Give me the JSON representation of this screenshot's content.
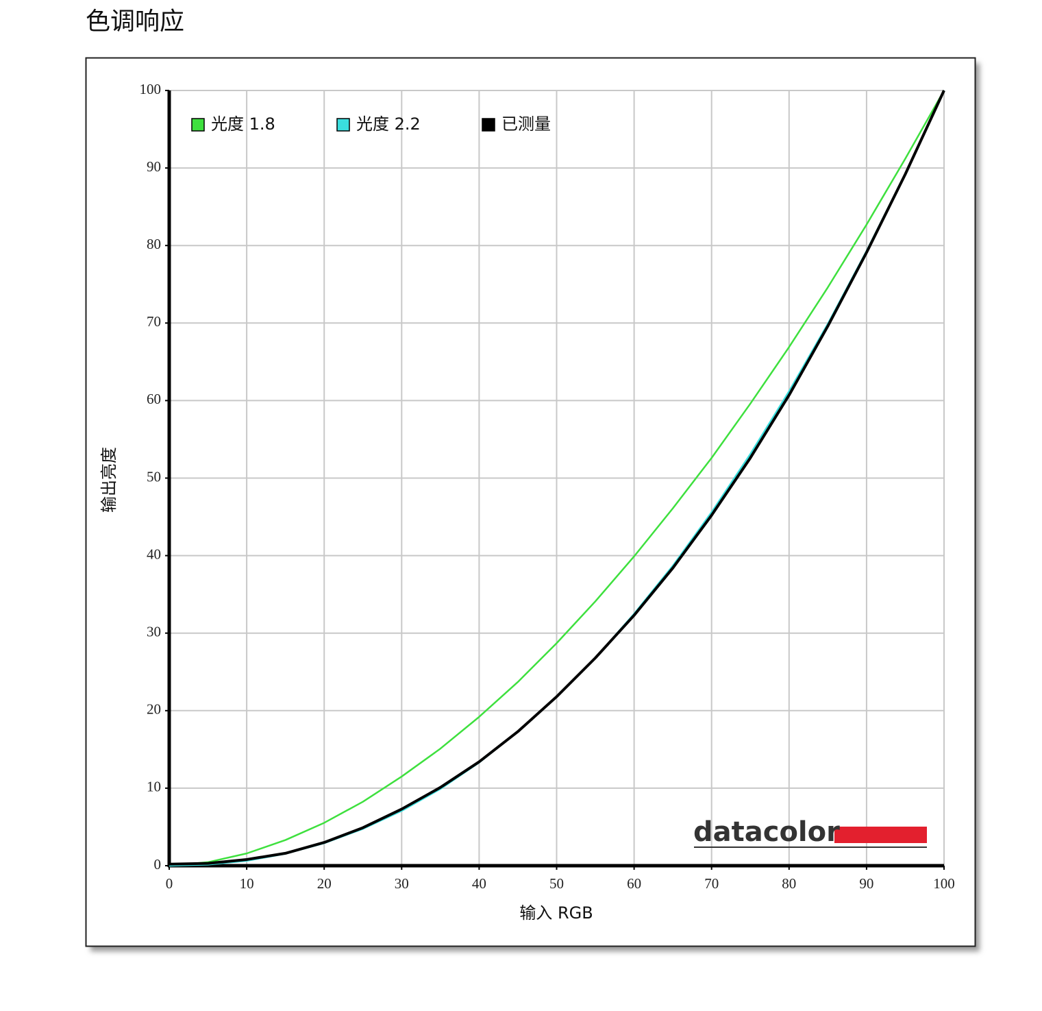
{
  "page_title": "色调响应",
  "chart_data": {
    "type": "line",
    "x_label": "输入 RGB",
    "y_label": "输出亮度",
    "logo": "datacolor",
    "x": [
      0,
      5,
      10,
      15,
      20,
      25,
      30,
      35,
      40,
      45,
      50,
      55,
      60,
      65,
      70,
      75,
      80,
      85,
      90,
      95,
      100
    ],
    "series": [
      {
        "name": "光度 1.8",
        "color": "#3ee03e",
        "values": [
          0,
          0.45,
          1.58,
          3.31,
          5.53,
          8.25,
          11.5,
          15.1,
          19.2,
          23.7,
          28.7,
          34.1,
          39.9,
          46.1,
          52.6,
          59.6,
          66.9,
          74.6,
          82.7,
          91.2,
          100
        ]
      },
      {
        "name": "光度 2.2",
        "color": "#3adede",
        "values": [
          0,
          0.14,
          0.63,
          1.54,
          2.9,
          4.75,
          7.07,
          9.9,
          13.3,
          17.3,
          21.8,
          26.8,
          32.5,
          38.7,
          45.6,
          53.1,
          61.2,
          69.9,
          79.3,
          89.3,
          100
        ]
      },
      {
        "name": "已测量",
        "color": "#000000",
        "values": [
          0.2,
          0.3,
          0.8,
          1.6,
          3.0,
          4.9,
          7.3,
          10.1,
          13.4,
          17.3,
          21.8,
          26.8,
          32.3,
          38.4,
          45.2,
          52.6,
          60.7,
          69.6,
          79.1,
          89.2,
          100
        ]
      }
    ],
    "xlim": [
      0,
      100
    ],
    "ylim": [
      0,
      100
    ],
    "xticks": [
      0,
      10,
      20,
      30,
      40,
      50,
      60,
      70,
      80,
      90,
      100
    ],
    "yticks": [
      0,
      10,
      20,
      30,
      40,
      50,
      60,
      70,
      80,
      90,
      100
    ],
    "grid": true,
    "legend": "top-left"
  }
}
